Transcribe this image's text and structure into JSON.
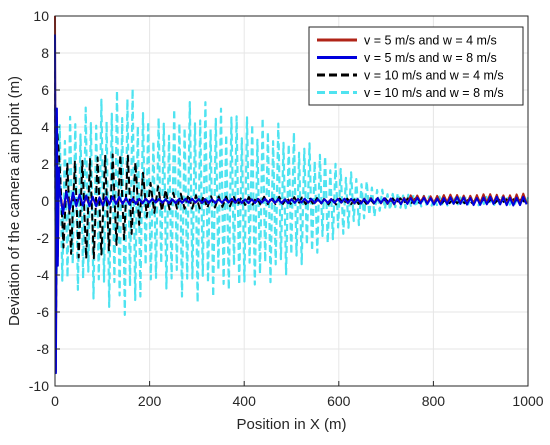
{
  "chart_data": {
    "type": "line",
    "title": "",
    "xlabel": "Position in X (m)",
    "ylabel": "Deviation of the camera aim point (m)",
    "xlim": [
      0,
      1000
    ],
    "ylim": [
      -10,
      10
    ],
    "xticks": [
      0,
      200,
      400,
      600,
      800,
      1000
    ],
    "yticks": [
      -10,
      -8,
      -6,
      -4,
      -2,
      0,
      2,
      4,
      6,
      8,
      10
    ],
    "grid": true,
    "legend_position": "top-right",
    "series": [
      {
        "name": "v = 5 m/s and w = 4 m/s",
        "color": "#b02418",
        "style": "solid",
        "description": "initial spike near x=0, then small oscillation around 0 that grows slightly toward x=1000",
        "points": [
          [
            0,
            10
          ],
          [
            2,
            -9.2
          ],
          [
            4,
            4.5
          ],
          [
            6,
            -3
          ],
          [
            8,
            1.5
          ],
          [
            12,
            -0.8
          ],
          [
            20,
            0.4
          ],
          [
            50,
            0.15
          ],
          [
            150,
            0.05
          ],
          [
            300,
            0.08
          ],
          [
            500,
            0.05
          ],
          [
            700,
            0.1
          ],
          [
            800,
            0.15
          ],
          [
            900,
            0.2
          ],
          [
            950,
            0.25
          ],
          [
            1000,
            0.2
          ]
        ],
        "envelope": [
          [
            10,
            0.6
          ],
          [
            50,
            0.25
          ],
          [
            200,
            0.1
          ],
          [
            600,
            0.12
          ],
          [
            750,
            0.2
          ],
          [
            850,
            0.25
          ],
          [
            1000,
            0.3
          ]
        ]
      },
      {
        "name": "v = 5 m/s and w = 8 m/s",
        "color": "#0000dd",
        "style": "solid",
        "description": "initial spike near x=0, then small oscillation around 0",
        "points": [
          [
            0,
            9
          ],
          [
            2,
            -9.3
          ],
          [
            4,
            5
          ],
          [
            6,
            -3.5
          ],
          [
            8,
            1.8
          ],
          [
            12,
            -1
          ],
          [
            20,
            0.5
          ],
          [
            50,
            0.2
          ],
          [
            150,
            0.05
          ],
          [
            300,
            -0.05
          ],
          [
            500,
            -0.05
          ],
          [
            700,
            -0.1
          ],
          [
            850,
            -0.1
          ],
          [
            1000,
            -0.1
          ]
        ],
        "envelope": [
          [
            10,
            0.8
          ],
          [
            50,
            0.35
          ],
          [
            200,
            0.12
          ],
          [
            600,
            0.12
          ],
          [
            800,
            0.2
          ],
          [
            1000,
            0.25
          ]
        ]
      },
      {
        "name": "v = 10 m/s and w = 4 m/s",
        "color": "#000000",
        "style": "dashed",
        "description": "dashed black oscillation with large amplitude near x=50-180 decaying to small amplitude after x=250",
        "points": [
          [
            0,
            7
          ],
          [
            2,
            -8
          ],
          [
            4,
            4
          ],
          [
            10,
            -2
          ],
          [
            50,
            3
          ],
          [
            100,
            -3
          ],
          [
            150,
            2.5
          ],
          [
            200,
            -0.5
          ],
          [
            300,
            0.2
          ],
          [
            600,
            0.1
          ],
          [
            1000,
            0.05
          ]
        ],
        "envelope": [
          [
            10,
            2.5
          ],
          [
            40,
            3.0
          ],
          [
            80,
            3.2
          ],
          [
            120,
            3.0
          ],
          [
            160,
            2.5
          ],
          [
            200,
            1.0
          ],
          [
            250,
            0.5
          ],
          [
            400,
            0.25
          ],
          [
            700,
            0.15
          ],
          [
            1000,
            0.1
          ]
        ]
      },
      {
        "name": "v = 10 m/s and w = 8 m/s",
        "color": "#4fe3f0",
        "style": "dashed",
        "description": "dashed cyan oscillation with very large amplitude between x=50 and x=650, decaying toward x=1000",
        "points": [
          [
            0,
            5
          ],
          [
            2,
            -6
          ],
          [
            50,
            3
          ],
          [
            100,
            -4
          ],
          [
            160,
            6.5
          ],
          [
            250,
            -4
          ],
          [
            300,
            6
          ],
          [
            400,
            -5
          ],
          [
            450,
            4.5
          ],
          [
            550,
            -3
          ],
          [
            650,
            1
          ],
          [
            700,
            -0.5
          ],
          [
            850,
            0.2
          ],
          [
            1000,
            0.1
          ]
        ],
        "envelope": [
          [
            10,
            4.5
          ],
          [
            40,
            4.8
          ],
          [
            100,
            5.5
          ],
          [
            160,
            6.5
          ],
          [
            200,
            4.5
          ],
          [
            250,
            5.0
          ],
          [
            300,
            5.5
          ],
          [
            400,
            4.8
          ],
          [
            450,
            4.5
          ],
          [
            500,
            3.8
          ],
          [
            550,
            3.0
          ],
          [
            600,
            2.0
          ],
          [
            650,
            1.2
          ],
          [
            700,
            0.5
          ],
          [
            800,
            0.25
          ],
          [
            1000,
            0.2
          ]
        ]
      }
    ]
  }
}
